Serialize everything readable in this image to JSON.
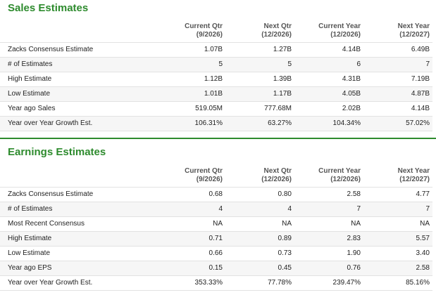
{
  "colors": {
    "title_green": "#2e8b2e",
    "header_gray": "#555555",
    "border": "#e2e2e2"
  },
  "sales": {
    "title": "Sales Estimates",
    "columns": [
      {
        "top": "Current Qtr",
        "bottom": "(9/2026)"
      },
      {
        "top": "Next Qtr",
        "bottom": "(12/2026)"
      },
      {
        "top": "Current Year",
        "bottom": "(12/2026)"
      },
      {
        "top": "Next Year",
        "bottom": "(12/2027)"
      }
    ],
    "rows": [
      {
        "label": "Zacks Consensus Estimate",
        "values": [
          "1.07B",
          "1.27B",
          "4.14B",
          "6.49B"
        ]
      },
      {
        "label": "# of Estimates",
        "values": [
          "5",
          "5",
          "6",
          "7"
        ]
      },
      {
        "label": "High Estimate",
        "values": [
          "1.12B",
          "1.39B",
          "4.31B",
          "7.19B"
        ]
      },
      {
        "label": "Low Estimate",
        "values": [
          "1.01B",
          "1.17B",
          "4.05B",
          "4.87B"
        ]
      },
      {
        "label": "Year ago Sales",
        "values": [
          "519.05M",
          "777.68M",
          "2.02B",
          "4.14B"
        ]
      },
      {
        "label": "Year over Year Growth Est.",
        "values": [
          "106.31%",
          "63.27%",
          "104.34%",
          "57.02%"
        ]
      }
    ]
  },
  "earnings": {
    "title": "Earnings Estimates",
    "columns": [
      {
        "top": "Current Qtr",
        "bottom": "(9/2026)"
      },
      {
        "top": "Next Qtr",
        "bottom": "(12/2026)"
      },
      {
        "top": "Current Year",
        "bottom": "(12/2026)"
      },
      {
        "top": "Next Year",
        "bottom": "(12/2027)"
      }
    ],
    "rows": [
      {
        "label": "Zacks Consensus Estimate",
        "values": [
          "0.68",
          "0.80",
          "2.58",
          "4.77"
        ]
      },
      {
        "label": "# of Estimates",
        "values": [
          "4",
          "4",
          "7",
          "7"
        ]
      },
      {
        "label": "Most Recent Consensus",
        "values": [
          "NA",
          "NA",
          "NA",
          "NA"
        ]
      },
      {
        "label": "High Estimate",
        "values": [
          "0.71",
          "0.89",
          "2.83",
          "5.57"
        ]
      },
      {
        "label": "Low Estimate",
        "values": [
          "0.66",
          "0.73",
          "1.90",
          "3.40"
        ]
      },
      {
        "label": "Year ago EPS",
        "values": [
          "0.15",
          "0.45",
          "0.76",
          "2.58"
        ]
      },
      {
        "label": "Year over Year Growth Est.",
        "values": [
          "353.33%",
          "77.78%",
          "239.47%",
          "85.16%"
        ]
      }
    ]
  }
}
